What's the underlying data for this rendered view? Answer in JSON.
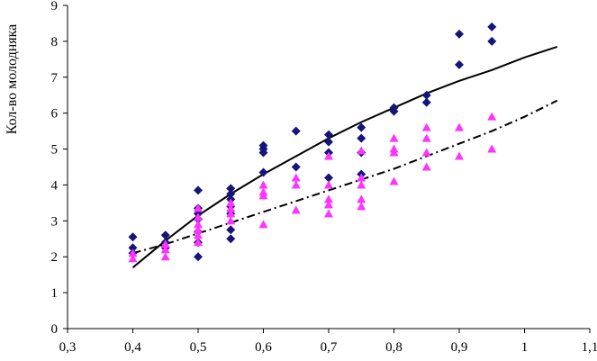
{
  "chart_data": {
    "type": "scatter",
    "title": "",
    "xlabel": "",
    "ylabel": "Кол-во молодняка",
    "xlim": [
      0.3,
      1.1
    ],
    "ylim": [
      0,
      9
    ],
    "x_ticks": [
      {
        "value": 0.3,
        "label": "0,3"
      },
      {
        "value": 0.4,
        "label": "0,4"
      },
      {
        "value": 0.5,
        "label": "0,5"
      },
      {
        "value": 0.6,
        "label": "0,6"
      },
      {
        "value": 0.7,
        "label": "0,7"
      },
      {
        "value": 0.8,
        "label": "0,8"
      },
      {
        "value": 0.9,
        "label": "0,9"
      },
      {
        "value": 1.0,
        "label": "1"
      },
      {
        "value": 1.1,
        "label": "1,1"
      }
    ],
    "y_ticks": [
      {
        "value": 0,
        "label": "0"
      },
      {
        "value": 1,
        "label": "1"
      },
      {
        "value": 2,
        "label": "2"
      },
      {
        "value": 3,
        "label": "3"
      },
      {
        "value": 4,
        "label": "4"
      },
      {
        "value": 5,
        "label": "5"
      },
      {
        "value": 6,
        "label": "6"
      },
      {
        "value": 7,
        "label": "7"
      },
      {
        "value": 8,
        "label": "8"
      },
      {
        "value": 9,
        "label": "9"
      }
    ],
    "grid": false,
    "legend": "none",
    "series": [
      {
        "name": "diamond-series",
        "marker": "diamond",
        "color": "#14147a",
        "points": [
          [
            0.4,
            2.55
          ],
          [
            0.4,
            2.25
          ],
          [
            0.4,
            2.1
          ],
          [
            0.45,
            2.6
          ],
          [
            0.45,
            2.4
          ],
          [
            0.45,
            2.25
          ],
          [
            0.5,
            3.85
          ],
          [
            0.5,
            3.35
          ],
          [
            0.5,
            3.2
          ],
          [
            0.5,
            3.05
          ],
          [
            0.5,
            2.7
          ],
          [
            0.5,
            2.4
          ],
          [
            0.5,
            2.0
          ],
          [
            0.55,
            3.9
          ],
          [
            0.55,
            3.75
          ],
          [
            0.55,
            3.6
          ],
          [
            0.55,
            3.4
          ],
          [
            0.55,
            3.2
          ],
          [
            0.55,
            2.75
          ],
          [
            0.55,
            2.5
          ],
          [
            0.6,
            5.1
          ],
          [
            0.6,
            5.0
          ],
          [
            0.6,
            4.9
          ],
          [
            0.6,
            4.35
          ],
          [
            0.65,
            5.5
          ],
          [
            0.65,
            4.5
          ],
          [
            0.7,
            5.4
          ],
          [
            0.7,
            5.2
          ],
          [
            0.7,
            4.9
          ],
          [
            0.7,
            4.2
          ],
          [
            0.75,
            5.6
          ],
          [
            0.75,
            5.3
          ],
          [
            0.75,
            4.9
          ],
          [
            0.75,
            4.3
          ],
          [
            0.8,
            6.15
          ],
          [
            0.8,
            6.05
          ],
          [
            0.85,
            6.5
          ],
          [
            0.85,
            6.3
          ],
          [
            0.9,
            8.2
          ],
          [
            0.9,
            7.35
          ],
          [
            0.95,
            8.4
          ],
          [
            0.95,
            8.0
          ]
        ]
      },
      {
        "name": "triangle-series",
        "marker": "triangle",
        "color": "#ff33ff",
        "points": [
          [
            0.4,
            2.1
          ],
          [
            0.4,
            1.95
          ],
          [
            0.45,
            2.35
          ],
          [
            0.45,
            2.2
          ],
          [
            0.45,
            2.0
          ],
          [
            0.5,
            3.35
          ],
          [
            0.5,
            3.1
          ],
          [
            0.5,
            2.9
          ],
          [
            0.5,
            2.75
          ],
          [
            0.5,
            2.6
          ],
          [
            0.5,
            2.4
          ],
          [
            0.55,
            3.5
          ],
          [
            0.55,
            3.35
          ],
          [
            0.55,
            3.2
          ],
          [
            0.55,
            3.0
          ],
          [
            0.6,
            4.0
          ],
          [
            0.6,
            3.8
          ],
          [
            0.6,
            3.7
          ],
          [
            0.6,
            2.9
          ],
          [
            0.65,
            4.2
          ],
          [
            0.65,
            4.0
          ],
          [
            0.65,
            3.3
          ],
          [
            0.7,
            4.8
          ],
          [
            0.7,
            4.0
          ],
          [
            0.7,
            3.6
          ],
          [
            0.7,
            3.45
          ],
          [
            0.7,
            3.2
          ],
          [
            0.75,
            4.95
          ],
          [
            0.75,
            4.2
          ],
          [
            0.75,
            4.0
          ],
          [
            0.75,
            3.6
          ],
          [
            0.75,
            3.4
          ],
          [
            0.8,
            5.3
          ],
          [
            0.8,
            5.0
          ],
          [
            0.8,
            4.9
          ],
          [
            0.8,
            4.1
          ],
          [
            0.85,
            5.6
          ],
          [
            0.85,
            5.3
          ],
          [
            0.85,
            4.9
          ],
          [
            0.85,
            4.5
          ],
          [
            0.9,
            5.6
          ],
          [
            0.9,
            4.8
          ],
          [
            0.95,
            5.9
          ],
          [
            0.95,
            5.0
          ]
        ]
      }
    ],
    "trendlines": [
      {
        "name": "diamond-trend",
        "style": "solid",
        "color": "#000000",
        "points": [
          [
            0.4,
            1.7
          ],
          [
            0.45,
            2.45
          ],
          [
            0.5,
            3.15
          ],
          [
            0.55,
            3.75
          ],
          [
            0.6,
            4.3
          ],
          [
            0.65,
            4.8
          ],
          [
            0.7,
            5.3
          ],
          [
            0.75,
            5.75
          ],
          [
            0.8,
            6.15
          ],
          [
            0.85,
            6.55
          ],
          [
            0.9,
            6.9
          ],
          [
            0.95,
            7.2
          ],
          [
            1.0,
            7.55
          ],
          [
            1.05,
            7.85
          ]
        ]
      },
      {
        "name": "triangle-trend",
        "style": "dashed",
        "color": "#000000",
        "points": [
          [
            0.4,
            2.1
          ],
          [
            0.45,
            2.35
          ],
          [
            0.5,
            2.65
          ],
          [
            0.55,
            2.95
          ],
          [
            0.6,
            3.25
          ],
          [
            0.65,
            3.55
          ],
          [
            0.7,
            3.85
          ],
          [
            0.75,
            4.15
          ],
          [
            0.8,
            4.45
          ],
          [
            0.85,
            4.8
          ],
          [
            0.9,
            5.15
          ],
          [
            0.95,
            5.5
          ],
          [
            1.0,
            5.9
          ],
          [
            1.05,
            6.35
          ]
        ]
      }
    ]
  }
}
